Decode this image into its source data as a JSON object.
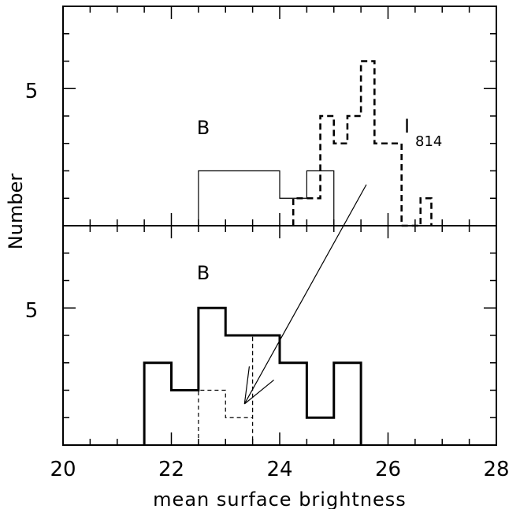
{
  "chart_data": [
    {
      "panel": "top",
      "type": "histogram",
      "label": "B",
      "annotation": "I",
      "annotation_subscript": "814",
      "xlim": [
        20,
        28
      ],
      "ylim": [
        0,
        8
      ],
      "ytick_label": "5",
      "series": [
        {
          "style": "thin-solid",
          "steps": [
            [
              22.5,
              2
            ],
            [
              24.0,
              1
            ],
            [
              24.5,
              2
            ],
            [
              25.0,
              0
            ]
          ]
        },
        {
          "style": "thick-dashed",
          "steps": [
            [
              24.25,
              1
            ],
            [
              24.75,
              4
            ],
            [
              25.0,
              3
            ],
            [
              25.25,
              4
            ],
            [
              25.5,
              6
            ],
            [
              25.75,
              3
            ],
            [
              26.25,
              0
            ],
            [
              26.5,
              0
            ],
            [
              26.6,
              1
            ],
            [
              26.8,
              0
            ]
          ]
        }
      ]
    },
    {
      "panel": "bottom",
      "type": "histogram",
      "label": "B",
      "xlim": [
        20,
        28
      ],
      "ylim": [
        0,
        8
      ],
      "ytick_label": "5",
      "series": [
        {
          "style": "thick-solid",
          "steps": [
            [
              21.5,
              3
            ],
            [
              22.0,
              2
            ],
            [
              22.5,
              5
            ],
            [
              23.0,
              4
            ],
            [
              24.0,
              3
            ],
            [
              24.5,
              1
            ],
            [
              25.0,
              3
            ],
            [
              25.5,
              0
            ]
          ]
        },
        {
          "style": "thin-dashed",
          "steps": [
            [
              22.5,
              2
            ],
            [
              23.0,
              1
            ],
            [
              23.5,
              4
            ],
            [
              23.5,
              0
            ]
          ]
        }
      ]
    }
  ],
  "shared": {
    "ylabel": "Number",
    "xlabel": "mean surface brightness",
    "xticks": [
      20,
      22,
      24,
      26,
      28
    ]
  },
  "arrow": {
    "from": {
      "panel": "top",
      "x": 25.6,
      "y": 1.5
    },
    "to": {
      "panel": "bottom",
      "x": 23.35,
      "y": 1.5
    }
  }
}
